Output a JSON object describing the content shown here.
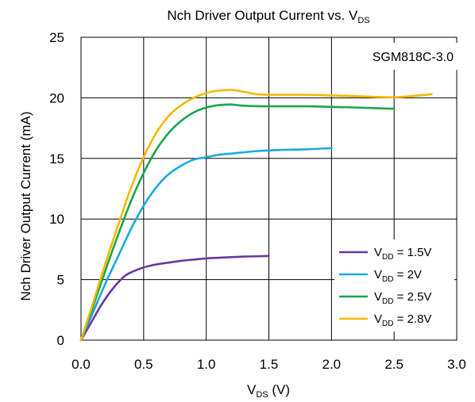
{
  "chart_data": {
    "type": "line",
    "title_main": "Nch Driver Output Current vs. V",
    "title_sub": "DS",
    "xlabel_main": "V",
    "xlabel_sub": "DS",
    "xlabel_unit": " (V)",
    "ylabel": "Nch Driver  Output Current (mA)",
    "annotation": "SGM818C-3.0",
    "xlim": [
      0,
      3.0
    ],
    "ylim": [
      0,
      25
    ],
    "x_ticks": [
      "0.0",
      "0.5",
      "1.0",
      "1.5",
      "2.0",
      "2.5",
      "3.0"
    ],
    "y_ticks": [
      "0",
      "5",
      "10",
      "15",
      "20",
      "25"
    ],
    "x_tick_values": [
      0,
      0.5,
      1.0,
      1.5,
      2.0,
      2.5,
      3.0
    ],
    "y_tick_values": [
      0,
      5,
      10,
      15,
      20,
      25
    ],
    "grid": true,
    "legend_position": "bottom-right",
    "series": [
      {
        "name_prefix": "V",
        "name_sub": "DD",
        "name_suffix": " = 1.5V",
        "color": "#6a35a6",
        "x": [
          0,
          0.05,
          0.1,
          0.15,
          0.2,
          0.25,
          0.3,
          0.35,
          0.4,
          0.5,
          0.6,
          0.7,
          0.8,
          0.9,
          1.0,
          1.1,
          1.2,
          1.3,
          1.4,
          1.5
        ],
        "y": [
          0,
          0.9,
          1.8,
          2.7,
          3.5,
          4.2,
          4.8,
          5.3,
          5.6,
          6.0,
          6.25,
          6.4,
          6.55,
          6.65,
          6.75,
          6.8,
          6.85,
          6.9,
          6.92,
          6.95
        ]
      },
      {
        "name_prefix": "V",
        "name_sub": "DD",
        "name_suffix": " = 2V",
        "color": "#1ba9e0",
        "x": [
          0,
          0.1,
          0.2,
          0.3,
          0.4,
          0.5,
          0.6,
          0.7,
          0.8,
          0.9,
          1.0,
          1.1,
          1.2,
          1.4,
          1.6,
          1.8,
          2.0
        ],
        "y": [
          0,
          2.4,
          4.8,
          7.0,
          9.2,
          11.1,
          12.6,
          13.7,
          14.4,
          14.9,
          15.1,
          15.3,
          15.4,
          15.6,
          15.7,
          15.75,
          15.85
        ]
      },
      {
        "name_prefix": "V",
        "name_sub": "DD",
        "name_suffix": " = 2.5V",
        "color": "#1aa64a",
        "x": [
          0,
          0.1,
          0.2,
          0.3,
          0.4,
          0.5,
          0.6,
          0.7,
          0.8,
          0.9,
          1.0,
          1.1,
          1.2,
          1.3,
          1.5,
          1.8,
          2.0,
          2.2,
          2.5
        ],
        "y": [
          0,
          2.9,
          5.9,
          8.8,
          11.5,
          13.8,
          15.7,
          17.1,
          18.1,
          18.8,
          19.2,
          19.4,
          19.45,
          19.35,
          19.3,
          19.3,
          19.25,
          19.2,
          19.1
        ]
      },
      {
        "name_prefix": "V",
        "name_sub": "DD",
        "name_suffix": " = 2.8V",
        "color": "#f5b800",
        "x": [
          0,
          0.1,
          0.2,
          0.3,
          0.4,
          0.5,
          0.6,
          0.7,
          0.8,
          0.9,
          1.0,
          1.1,
          1.2,
          1.3,
          1.4,
          1.5,
          1.8,
          2.0,
          2.3,
          2.5,
          2.7,
          2.8
        ],
        "y": [
          0,
          3.2,
          6.5,
          9.6,
          12.6,
          15.1,
          17.1,
          18.5,
          19.4,
          20.0,
          20.4,
          20.6,
          20.65,
          20.5,
          20.3,
          20.25,
          20.25,
          20.2,
          20.1,
          20.05,
          20.2,
          20.3
        ]
      }
    ]
  }
}
